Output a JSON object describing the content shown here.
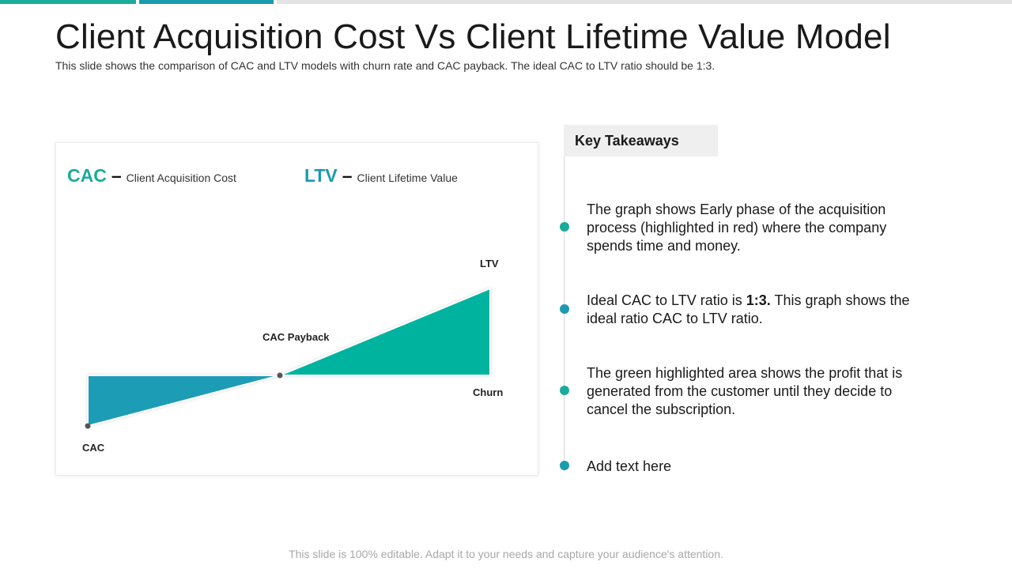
{
  "slide": {
    "title": "Client Acquisition Cost Vs Client Lifetime Value Model",
    "subtitle": "This slide shows the comparison of CAC and LTV models with churn rate and CAC payback. The ideal CAC to LTV ratio should be 1:3.",
    "footer": "This slide is 100% editable. Adapt it to your needs and capture your audience's attention."
  },
  "colors": {
    "teal": "#1aab9b",
    "blue": "#1a9bb0",
    "green_area": "#05b39f",
    "blue_area": "#1d9db5"
  },
  "legend": {
    "cac_abbr": "CAC",
    "cac_dash": "–",
    "cac_desc": "Client Acquisition Cost",
    "ltv_abbr": "LTV",
    "ltv_dash": "–",
    "ltv_desc": "Client Lifetime Value"
  },
  "diagram": {
    "labels": {
      "ltv": "LTV",
      "cac_payback": "CAC Payback",
      "churn": "Churn",
      "cac": "CAC"
    }
  },
  "takeaways": {
    "heading": "Key Takeaways",
    "items": [
      {
        "text": "The graph shows Early phase of the acquisition process (highlighted in red) where the company spends time and money."
      },
      {
        "pre": "Ideal CAC to LTV ratio is ",
        "bold": "1:3.",
        "post": " This graph shows the ideal ratio CAC to LTV ratio."
      },
      {
        "text": "The green highlighted area shows the profit that is generated from the customer until they decide to cancel the subscription."
      },
      {
        "text": "Add text here"
      }
    ],
    "dot_colors": [
      "#1aab9b",
      "#1a9bb0",
      "#1aab9b",
      "#1a9bb0"
    ]
  }
}
